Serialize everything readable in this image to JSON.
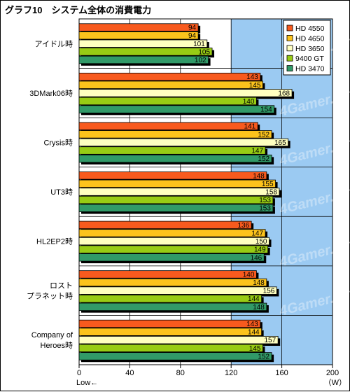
{
  "chart_data": {
    "type": "bar",
    "orientation": "horizontal",
    "title": "グラフ10　システム全体の消費電力",
    "categories": [
      "アイドル時",
      "3DMark06時",
      "Crysis時",
      "UT3時",
      "HL2EP2時",
      "ロスト\nプラネット時",
      "Company of\nHeroes時"
    ],
    "series": [
      {
        "name": "HD 4550",
        "color": "#f85a1e",
        "values": [
          94,
          143,
          141,
          148,
          136,
          140,
          143
        ]
      },
      {
        "name": "HD 4650",
        "color": "#fcc31c",
        "values": [
          94,
          145,
          152,
          155,
          147,
          148,
          144
        ]
      },
      {
        "name": "HD 3650",
        "color": "#ffffc0",
        "values": [
          101,
          168,
          165,
          158,
          150,
          156,
          157
        ]
      },
      {
        "name": "9400 GT",
        "color": "#98cc14",
        "values": [
          105,
          140,
          147,
          153,
          149,
          144,
          145
        ]
      },
      {
        "name": "HD 3470",
        "color": "#319a68",
        "values": [
          102,
          154,
          152,
          153,
          146,
          148,
          152
        ]
      }
    ],
    "xlim": [
      0,
      200
    ],
    "xticks": [
      "0",
      "40",
      "80",
      "120",
      "160",
      "200"
    ],
    "xlabel_left": "Low←",
    "xlabel_right": "（W）",
    "highlight_range": [
      120,
      200
    ],
    "legend_position": "top-right",
    "watermark": "4Gamer.net",
    "colors": {
      "background": "#ffffff",
      "highlight": "#9bcaf2",
      "shadow": "#000000",
      "bar_border": "#000000"
    }
  }
}
